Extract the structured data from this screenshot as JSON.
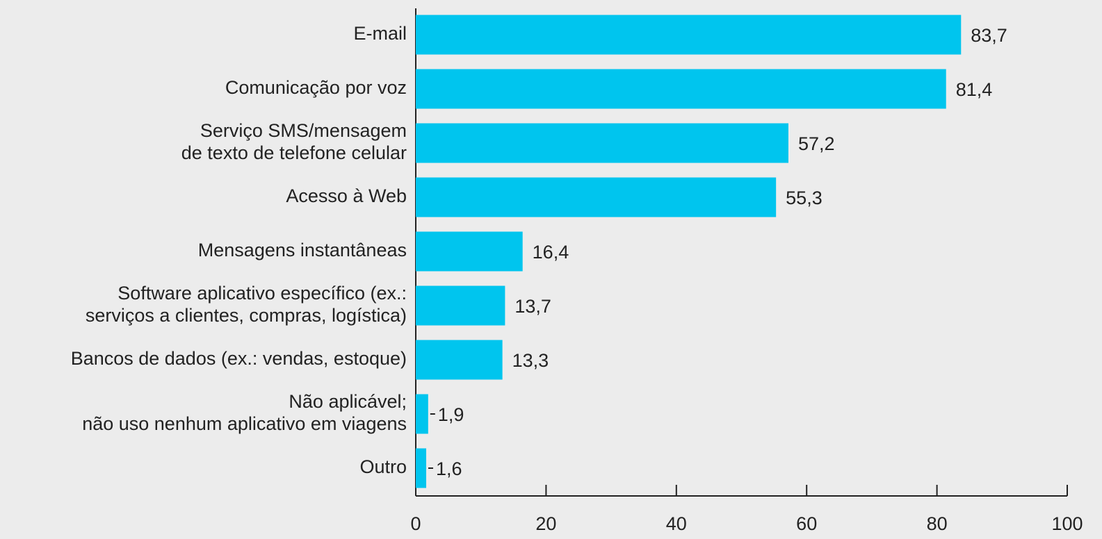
{
  "chart_data": {
    "type": "bar",
    "orientation": "horizontal",
    "categories": [
      "E-mail",
      "Comunicação por voz",
      "Serviço SMS/mensagem\nde texto de telefone celular",
      "Acesso à Web",
      "Mensagens instantâneas",
      "Software aplicativo específico (ex.:\nserviços a clientes, compras, logística)",
      "Bancos de dados (ex.: vendas, estoque)",
      "Não aplicável;\nnão uso nenhum aplicativo em viagens",
      "Outro"
    ],
    "values": [
      83.7,
      81.4,
      57.2,
      55.3,
      16.4,
      13.7,
      13.3,
      1.9,
      1.6
    ],
    "value_labels": [
      "83,7",
      "81,4",
      "57,2",
      "55,3",
      "16,4",
      "13,7",
      "13,3",
      "1,9",
      "1,6"
    ],
    "color": "#00c5ee",
    "xlim": [
      0,
      100
    ],
    "xticks": [
      0,
      20,
      40,
      60,
      80,
      100
    ],
    "grid": false
  }
}
